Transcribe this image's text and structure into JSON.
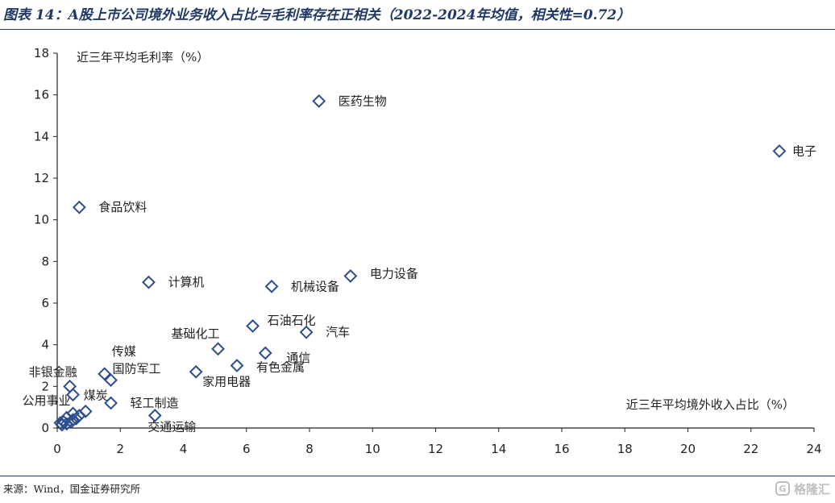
{
  "title": "图表 14：A股上市公司境外业务收入占比与毛利率存在正相关（2022-2024年均值，相关性=0.72）",
  "source": "来源：Wind，国金证券研究所",
  "watermark": {
    "mark": "G",
    "text": "格隆汇"
  },
  "colors": {
    "marker": "#2e4d8f",
    "title": "#1f3864",
    "axis": "#222222"
  },
  "chart_data": {
    "type": "scatter",
    "title": "图表 14：A股上市公司境外业务收入占比与毛利率存在正相关（2022-2024年均值，相关性=0.72）",
    "xlabel": "近三年平均境外收入占比（%）",
    "ylabel": "近三年平均毛利率（%）",
    "xlim": [
      0,
      24
    ],
    "ylim": [
      0,
      18
    ],
    "xticks": [
      0,
      2,
      4,
      6,
      8,
      10,
      12,
      14,
      16,
      18,
      20,
      22,
      24
    ],
    "yticks": [
      0,
      2,
      4,
      6,
      8,
      10,
      12,
      14,
      16,
      18
    ],
    "grid": false,
    "legend": "none",
    "marker": "hollow-diamond",
    "points": [
      {
        "label": "电子",
        "x": 22.9,
        "y": 13.3
      },
      {
        "label": "医药生物",
        "x": 8.3,
        "y": 15.7
      },
      {
        "label": "食品饮料",
        "x": 0.7,
        "y": 10.6
      },
      {
        "label": "计算机",
        "x": 2.9,
        "y": 7.0
      },
      {
        "label": "电力设备",
        "x": 9.3,
        "y": 7.3
      },
      {
        "label": "机械设备",
        "x": 6.8,
        "y": 6.8
      },
      {
        "label": "石油石化",
        "x": 6.2,
        "y": 4.9
      },
      {
        "label": "汽车",
        "x": 7.9,
        "y": 4.6
      },
      {
        "label": "基础化工",
        "x": 5.1,
        "y": 3.8
      },
      {
        "label": "通信",
        "x": 6.6,
        "y": 3.6
      },
      {
        "label": "有色金属",
        "x": 5.7,
        "y": 3.0
      },
      {
        "label": "家用电器",
        "x": 4.4,
        "y": 2.7
      },
      {
        "label": "传媒",
        "x": 1.5,
        "y": 2.6
      },
      {
        "label": "国防军工",
        "x": 1.7,
        "y": 2.3
      },
      {
        "label": "非银金融",
        "x": 0.4,
        "y": 2.0
      },
      {
        "label": "煤炭",
        "x": 0.5,
        "y": 1.6
      },
      {
        "label": "轻工制造",
        "x": 1.7,
        "y": 1.2
      },
      {
        "label": "公用事业",
        "x": 0.5,
        "y": 0.7
      },
      {
        "label": "交通运输",
        "x": 3.1,
        "y": 0.6
      },
      {
        "label": "",
        "x": 0.9,
        "y": 0.8
      },
      {
        "label": "",
        "x": 0.7,
        "y": 0.6
      },
      {
        "label": "",
        "x": 0.5,
        "y": 0.4
      },
      {
        "label": "",
        "x": 0.3,
        "y": 0.5
      },
      {
        "label": "",
        "x": 0.2,
        "y": 0.3
      },
      {
        "label": "",
        "x": 0.15,
        "y": 0.15
      },
      {
        "label": "",
        "x": 0.3,
        "y": 0.2
      },
      {
        "label": "",
        "x": 0.45,
        "y": 0.3
      },
      {
        "label": "",
        "x": 0.6,
        "y": 0.45
      },
      {
        "label": "",
        "x": 0.1,
        "y": 0.25
      }
    ]
  }
}
